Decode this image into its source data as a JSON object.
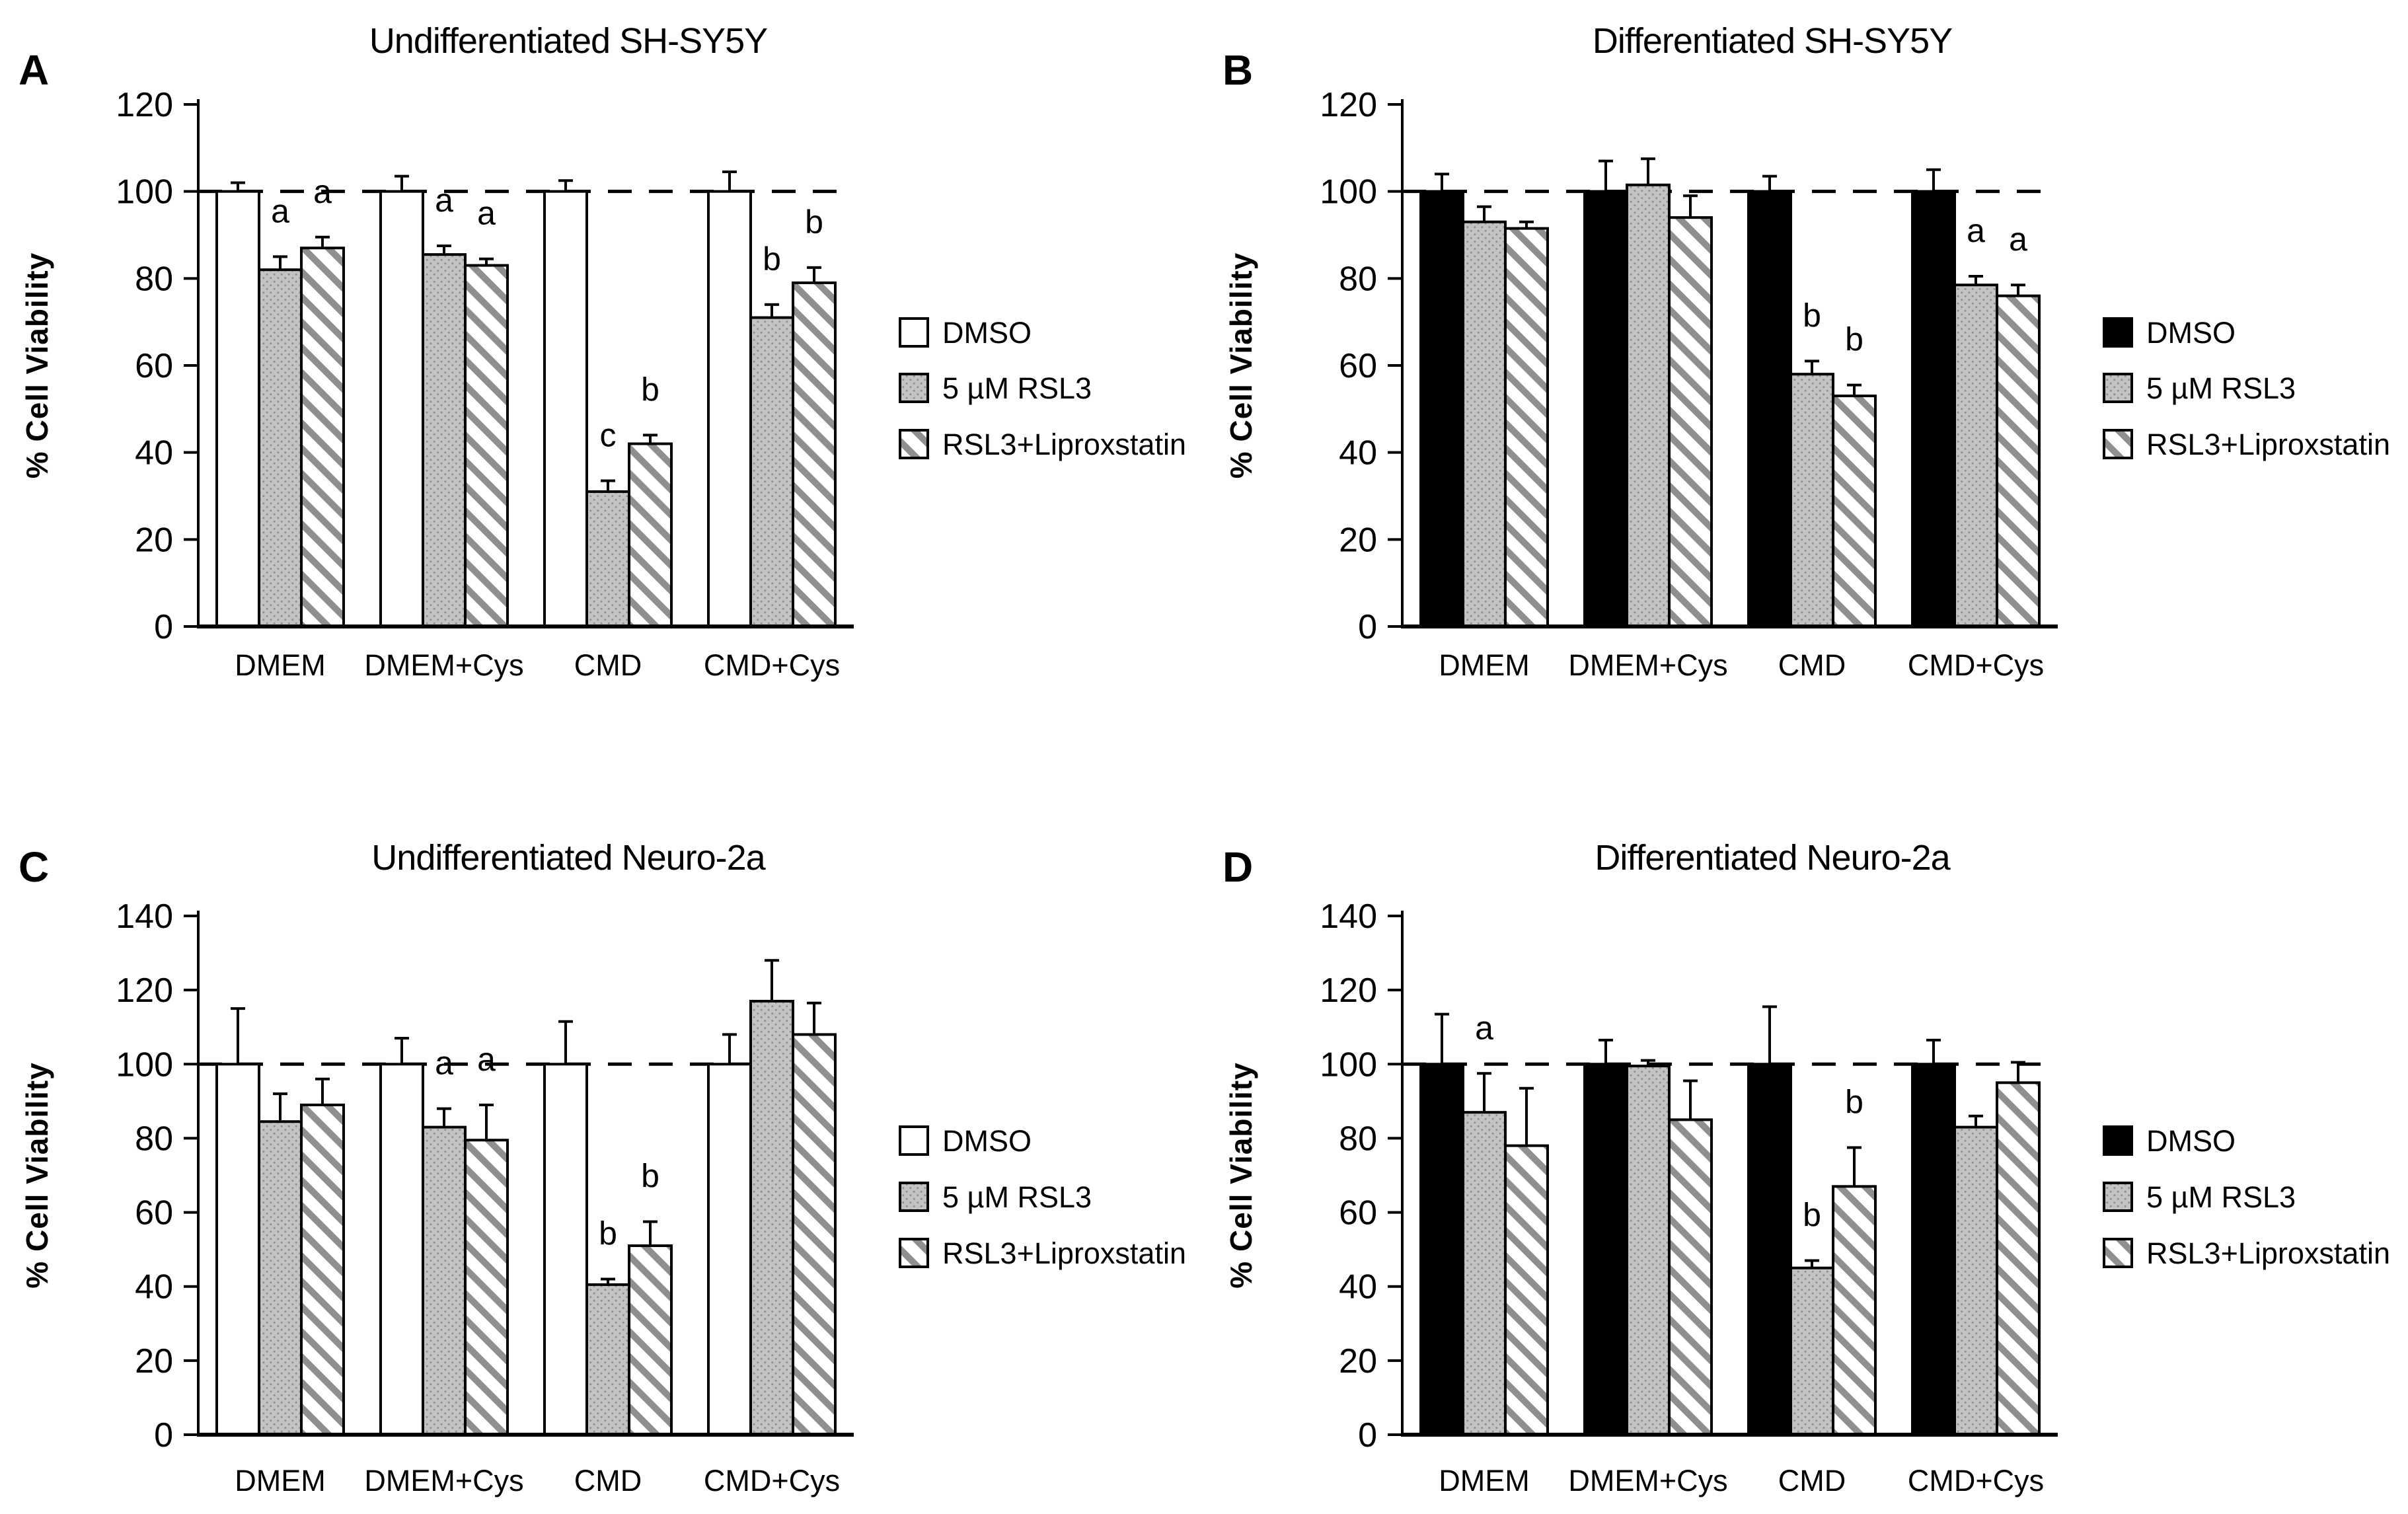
{
  "figure": {
    "background": "#ffffff",
    "description": "Four-panel bar figure of % cell viability under RSL3 ferroptosis induction"
  },
  "palette": {
    "black": "#000000",
    "white": "#ffffff",
    "gray_fill": "#c3c3c3",
    "gray_dot": "#8e8e8e",
    "hatch_stripe": "#8f8f8f",
    "outline": "#000000",
    "text": "#000000",
    "background": "#ffffff"
  },
  "chart_data": [
    {
      "type": "bar",
      "panel_letter": "A",
      "title": "Undifferentiated SH-SY5Y",
      "ylabel": "% Cell Viability",
      "ylim": [
        0,
        120
      ],
      "yticks": [
        0,
        20,
        40,
        60,
        80,
        100,
        120
      ],
      "reference_line": 100,
      "grid": false,
      "legend_position": "right",
      "categories": [
        "DMEM",
        "DMEM+Cys",
        "CMD",
        "CMD+Cys"
      ],
      "series": [
        {
          "name": "DMSO",
          "fill_style": "white",
          "values": [
            100,
            100,
            100,
            100
          ],
          "errors": [
            2,
            3.5,
            2.5,
            4.5
          ],
          "letters": [
            "",
            "",
            "",
            ""
          ]
        },
        {
          "name": "5 µM RSL3",
          "fill_style": "gray-stipple",
          "values": [
            82,
            85.5,
            31,
            71
          ],
          "errors": [
            3,
            2,
            2.5,
            3
          ],
          "letters": [
            "a",
            "a",
            "c",
            "b"
          ]
        },
        {
          "name": "RSL3+Liproxstatin",
          "fill_style": "diagonal-hatch",
          "values": [
            87,
            83,
            42,
            79
          ],
          "errors": [
            2.5,
            1.5,
            2,
            3.5
          ],
          "letters": [
            "a",
            "a",
            "b",
            "b"
          ]
        }
      ]
    },
    {
      "type": "bar",
      "panel_letter": "B",
      "title": "Differentiated SH-SY5Y",
      "ylabel": "% Cell Viability",
      "ylim": [
        0,
        120
      ],
      "yticks": [
        0,
        20,
        40,
        60,
        80,
        100,
        120
      ],
      "reference_line": 100,
      "grid": false,
      "legend_position": "right",
      "categories": [
        "DMEM",
        "DMEM+Cys",
        "CMD",
        "CMD+Cys"
      ],
      "series": [
        {
          "name": "DMSO",
          "fill_style": "black",
          "values": [
            100,
            100,
            100,
            100
          ],
          "errors": [
            4,
            7,
            3.5,
            5
          ],
          "letters": [
            "",
            "",
            "",
            ""
          ]
        },
        {
          "name": "5 µM RSL3",
          "fill_style": "gray-stipple",
          "values": [
            93,
            101.5,
            58,
            78.5
          ],
          "errors": [
            3.5,
            6,
            3,
            2
          ],
          "letters": [
            "",
            "",
            "b",
            "a"
          ]
        },
        {
          "name": "RSL3+Liproxstatin",
          "fill_style": "diagonal-hatch",
          "values": [
            91.5,
            94,
            53,
            76
          ],
          "errors": [
            1.5,
            5,
            2.5,
            2.5
          ],
          "letters": [
            "",
            "",
            "b",
            "a"
          ]
        }
      ]
    },
    {
      "type": "bar",
      "panel_letter": "C",
      "title": "Undifferentiated Neuro-2a",
      "ylabel": "% Cell Viability",
      "ylim": [
        0,
        140
      ],
      "yticks": [
        0,
        20,
        40,
        60,
        80,
        100,
        120,
        140
      ],
      "reference_line": 100,
      "grid": false,
      "legend_position": "right",
      "categories": [
        "DMEM",
        "DMEM+Cys",
        "CMD",
        "CMD+Cys"
      ],
      "series": [
        {
          "name": "DMSO",
          "fill_style": "white",
          "values": [
            100,
            100,
            100,
            100
          ],
          "errors": [
            15,
            7,
            11.5,
            8
          ],
          "letters": [
            "",
            "",
            "",
            ""
          ]
        },
        {
          "name": "5 µM RSL3",
          "fill_style": "gray-stipple",
          "values": [
            84.5,
            83,
            40.5,
            117
          ],
          "errors": [
            7.5,
            5,
            1.5,
            11
          ],
          "letters": [
            "",
            "a",
            "b",
            ""
          ]
        },
        {
          "name": "RSL3+Liproxstatin",
          "fill_style": "diagonal-hatch",
          "values": [
            89,
            79.5,
            51,
            108
          ],
          "errors": [
            7,
            9.5,
            6.5,
            8.5
          ],
          "letters": [
            "",
            "a",
            "b",
            ""
          ]
        }
      ]
    },
    {
      "type": "bar",
      "panel_letter": "D",
      "title": "Differentiated Neuro-2a",
      "ylabel": "% Cell Viability",
      "ylim": [
        0,
        140
      ],
      "yticks": [
        0,
        20,
        40,
        60,
        80,
        100,
        120,
        140
      ],
      "reference_line": 100,
      "grid": false,
      "legend_position": "right",
      "categories": [
        "DMEM",
        "DMEM+Cys",
        "CMD",
        "CMD+Cys"
      ],
      "series": [
        {
          "name": "DMSO",
          "fill_style": "black",
          "values": [
            100,
            100,
            100,
            100
          ],
          "errors": [
            13.5,
            6.5,
            15.5,
            6.5
          ],
          "letters": [
            "",
            "",
            "",
            ""
          ]
        },
        {
          "name": "5 µM RSL3",
          "fill_style": "gray-stipple",
          "values": [
            87,
            99.5,
            45,
            83
          ],
          "errors": [
            10.5,
            1.5,
            2,
            3
          ],
          "letters": [
            "a",
            "",
            "b",
            ""
          ]
        },
        {
          "name": "RSL3+Liproxstatin",
          "fill_style": "diagonal-hatch",
          "values": [
            78,
            85,
            67,
            95
          ],
          "errors": [
            15.5,
            10.5,
            10.5,
            5.5
          ],
          "letters": [
            "",
            "",
            "b",
            ""
          ]
        }
      ]
    }
  ]
}
